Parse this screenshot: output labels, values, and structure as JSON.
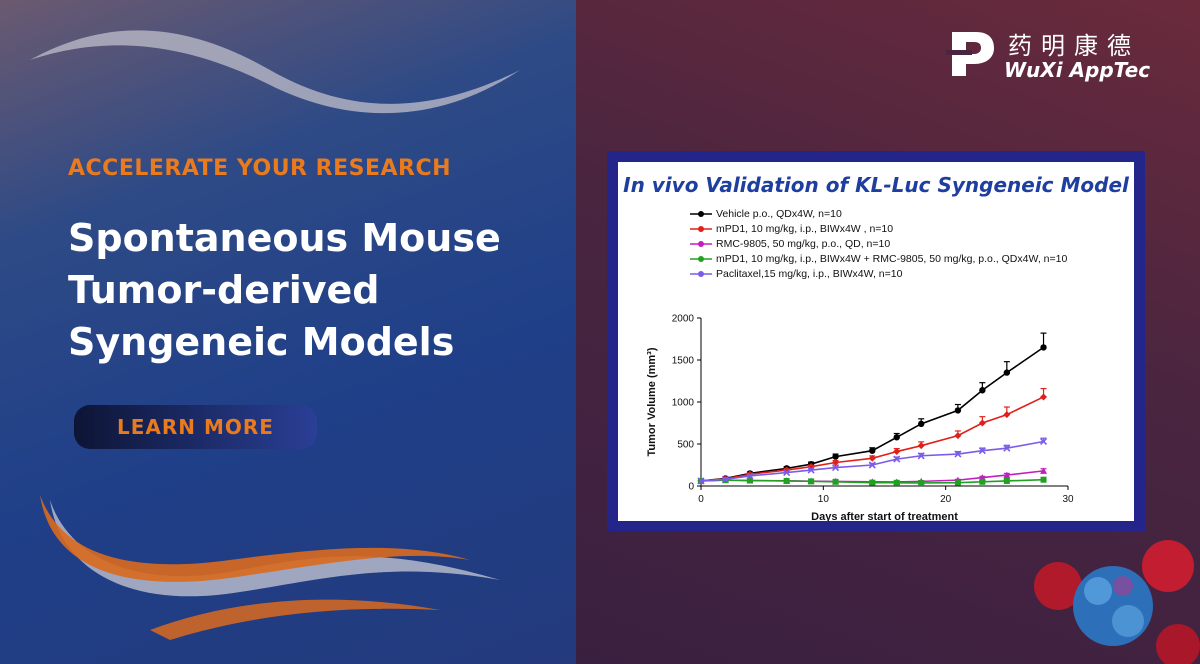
{
  "hero": {
    "kicker": "ACCELERATE YOUR RESEARCH",
    "headline_lines": [
      "Spontaneous Mouse",
      "Tumor-derived",
      "Syngeneic Models"
    ],
    "cta_label": "LEARN MORE"
  },
  "brand": {
    "name_cn": "药明康德",
    "name_en": "WuXi AppTec"
  },
  "colors": {
    "accent": "#ea7a1e",
    "chart_title": "#1f3fa0",
    "frame": "#24258a"
  },
  "chart_data": {
    "type": "line",
    "title": "In vivo Validation of KL-Luc Syngeneic Model",
    "xlabel": "Days after start of treatment",
    "ylabel": "Tumor Volume (mm³)",
    "xlim": [
      0,
      30
    ],
    "ylim": [
      0,
      2000
    ],
    "xticks": [
      0,
      10,
      20,
      30
    ],
    "yticks": [
      0,
      500,
      1000,
      1500,
      2000
    ],
    "x": [
      0,
      2,
      4,
      7,
      9,
      11,
      14,
      16,
      18,
      21,
      23,
      25,
      28
    ],
    "series": [
      {
        "name": "Vehicle p.o., QDx4W, n=10",
        "color": "#000000",
        "marker": "circle",
        "values": [
          60,
          90,
          150,
          210,
          260,
          350,
          420,
          580,
          740,
          900,
          1140,
          1350,
          1650
        ],
        "errors": [
          0,
          10,
          15,
          20,
          25,
          30,
          35,
          45,
          60,
          70,
          90,
          130,
          170
        ]
      },
      {
        "name": "mPD1, 10 mg/kg, i.p., BIWx4W , n=10",
        "color": "#e0201a",
        "marker": "diamond",
        "values": [
          60,
          85,
          140,
          190,
          230,
          280,
          330,
          410,
          480,
          600,
          750,
          850,
          1060
        ],
        "errors": [
          0,
          10,
          12,
          15,
          18,
          22,
          28,
          35,
          45,
          55,
          75,
          90,
          100
        ]
      },
      {
        "name": "RMC-9805, 50 mg/kg, p.o., QD, n=10",
        "color": "#c020c0",
        "marker": "triangle",
        "values": [
          60,
          70,
          65,
          62,
          58,
          55,
          50,
          48,
          55,
          70,
          100,
          130,
          180
        ],
        "errors": [
          0,
          5,
          5,
          5,
          5,
          5,
          5,
          5,
          8,
          10,
          15,
          20,
          25
        ]
      },
      {
        "name": "mPD1, 10 mg/kg, i.p., BIWx4W + RMC-9805, 50 mg/kg, p.o., QDx4W, n=10",
        "color": "#22a022",
        "marker": "square",
        "values": [
          60,
          70,
          65,
          60,
          55,
          50,
          40,
          38,
          36,
          40,
          50,
          60,
          75
        ],
        "errors": [
          0,
          5,
          5,
          5,
          5,
          5,
          5,
          5,
          5,
          5,
          8,
          10,
          12
        ]
      },
      {
        "name": "Paclitaxel,15 mg/kg, i.p., BIWx4W, n=10",
        "color": "#7b5ce8",
        "marker": "x",
        "values": [
          60,
          80,
          120,
          160,
          190,
          220,
          250,
          320,
          360,
          380,
          420,
          450,
          530
        ],
        "errors": [
          0,
          8,
          10,
          12,
          15,
          18,
          20,
          25,
          28,
          30,
          32,
          35,
          40
        ]
      }
    ]
  }
}
